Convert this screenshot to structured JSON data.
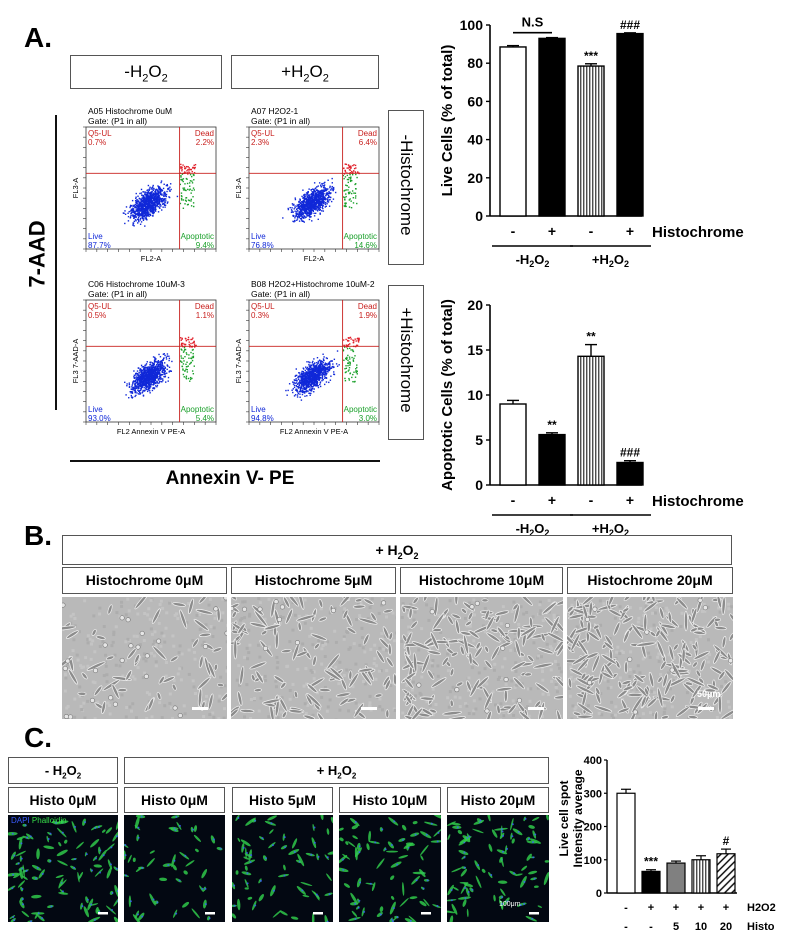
{
  "panelA": {
    "label": "A.",
    "col_headers": [
      "-H",
      "+H"
    ],
    "row_headers": [
      "-Histochrome",
      "+Histochrome"
    ],
    "y_axis": "7-AAD",
    "x_axis": "Annexin V- PE",
    "plots": [
      {
        "title": "A05 Histochrome 0uM",
        "gate": "Gate: (P1 in all)",
        "ul_name": "Q5-UL",
        "ul_val": "0.7%",
        "ur_name": "Dead",
        "ur_val": "2.2%",
        "ll_name": "Live",
        "ll_val": "87.7%",
        "lr_name": "Apoptotic",
        "lr_val": "9.4%",
        "xlab": "FL2-A",
        "ylab": "FL3-A"
      },
      {
        "title": "A07 H2O2-1",
        "gate": "Gate: (P1 in all)",
        "ul_name": "Q5-UL",
        "ul_val": "2.3%",
        "ur_name": "Dead",
        "ur_val": "6.4%",
        "ll_name": "Live",
        "ll_val": "76.8%",
        "lr_name": "Apoptotic",
        "lr_val": "14.6%",
        "xlab": "FL2-A",
        "ylab": "FL3-A"
      },
      {
        "title": "C06 Histochrome 10uM-3",
        "gate": "Gate: (P1 in all)",
        "ul_name": "Q5-UL",
        "ul_val": "0.5%",
        "ur_name": "Dead",
        "ur_val": "1.1%",
        "ll_name": "Live",
        "ll_val": "93.0%",
        "lr_name": "Apoptotic",
        "lr_val": "5.4%",
        "xlab": "FL2 Annexin V PE-A",
        "ylab": "FL3 7-AAD-A"
      },
      {
        "title": "B08 H2O2+Histochrome 10uM-2",
        "gate": "Gate: (P1 in all)",
        "ul_name": "Q5-UL",
        "ul_val": "0.3%",
        "ur_name": "Dead",
        "ur_val": "1.9%",
        "ll_name": "Live",
        "ll_val": "94.8%",
        "lr_name": "Apoptotic",
        "lr_val": "3.0%",
        "xlab": "FL2 Annexin V PE-A",
        "ylab": "FL3 7-AAD-A"
      }
    ]
  },
  "panelB": {
    "label": "B.",
    "header": "+ H",
    "conds": [
      "Histochrome  0μM",
      "Histochrome  5μM",
      "Histochrome  10μM",
      "Histochrome  20μM"
    ],
    "scale": "50μm"
  },
  "panelC": {
    "label": "C.",
    "neg_header": "- H",
    "pos_header": "+ H",
    "conds": [
      "Histo 0μM",
      "Histo 0μM",
      "Histo 5μM",
      "Histo 10μM",
      "Histo 20μM"
    ],
    "stain_dapi": "DAPI",
    "stain_phal": "Phalloidin",
    "scale": "100μm"
  },
  "subscript_2": "2",
  "suffix_O2": "O",
  "chart_data": [
    {
      "type": "bar",
      "ylabel": "Live Cells (% of total)",
      "ylim": [
        0,
        100
      ],
      "yticks": [
        0,
        20,
        40,
        60,
        80,
        100
      ],
      "categories": [
        "-",
        "+",
        "-",
        "+"
      ],
      "values": [
        88.5,
        93,
        78.5,
        95.5
      ],
      "errors": [
        0.7,
        0.4,
        1.2,
        0.4
      ],
      "fills": [
        "white",
        "black",
        "stripe",
        "black"
      ],
      "annotations": [
        "",
        "",
        "***",
        "###"
      ],
      "bracket": "N.S",
      "row_label": "Histochrome",
      "groups": [
        "-H2O2",
        "+H2O2"
      ]
    },
    {
      "type": "bar",
      "ylabel": "Apoptotic Cells (% of total)",
      "ylim": [
        0,
        20
      ],
      "yticks": [
        0,
        5,
        10,
        15,
        20
      ],
      "categories": [
        "-",
        "+",
        "-",
        "+"
      ],
      "values": [
        9.0,
        5.6,
        14.3,
        2.5
      ],
      "errors": [
        0.4,
        0.2,
        1.3,
        0.2
      ],
      "fills": [
        "white",
        "black",
        "stripe",
        "black"
      ],
      "annotations": [
        "",
        "**",
        "**",
        "###"
      ],
      "row_label": "Histochrome",
      "groups": [
        "-H2O2",
        "+H2O2"
      ]
    },
    {
      "type": "bar",
      "ylabel": "Live cell spot Intensity average",
      "ylim": [
        0,
        400
      ],
      "yticks": [
        0,
        100,
        200,
        300,
        400
      ],
      "values": [
        300,
        65,
        90,
        100,
        118
      ],
      "errors": [
        12,
        5,
        6,
        12,
        14
      ],
      "fills": [
        "white",
        "black",
        "gray",
        "stripe",
        "diag"
      ],
      "annotations": [
        "",
        "***",
        "",
        "",
        "#"
      ],
      "row1_label": "H2O2",
      "row1": [
        "-",
        "+",
        "+",
        "+",
        "+"
      ],
      "row2_label": "Histo",
      "row2": [
        "-",
        "-",
        "5",
        "10",
        "20"
      ]
    }
  ]
}
